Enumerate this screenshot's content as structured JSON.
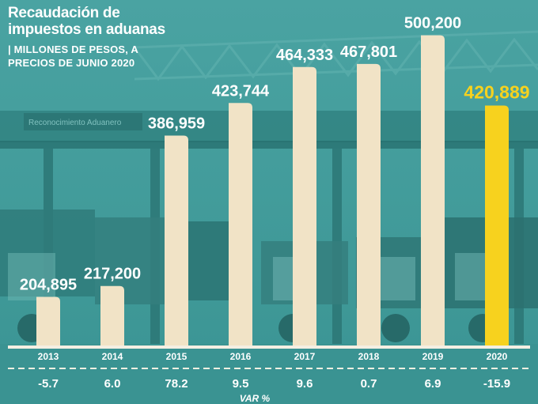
{
  "chart_data": {
    "type": "bar",
    "title": [
      "Recaudación de",
      "impuestos en aduanas"
    ],
    "subtitle": [
      "| MILLONES DE PESOS, A",
      "PRECIOS DE JUNIO 2020"
    ],
    "categories": [
      "2013",
      "2014",
      "2015",
      "2016",
      "2017",
      "2018",
      "2019",
      "2020"
    ],
    "values": [
      204895,
      217200,
      386959,
      423744,
      464333,
      467801,
      500200,
      420889
    ],
    "value_labels": [
      "204,895",
      "217,200",
      "386,959",
      "423,744",
      "464,333",
      "467,801",
      "500,200",
      "420,889"
    ],
    "var_pct": [
      "-5.7",
      "6.0",
      "78.2",
      "9.5",
      "9.6",
      "0.7",
      "6.9",
      "-15.9"
    ],
    "var_label": "VAR %",
    "highlight_index": 7,
    "ylim": [
      150000,
      515000
    ],
    "grid": false,
    "legend": "none"
  },
  "colors": {
    "background": "#3f9a99",
    "bar": "#f1e3c6",
    "highlight_bar": "#f7d21e",
    "text": "#ffffff",
    "highlight_text": "#f7d21e"
  },
  "background_scene": {
    "gantry_sign": "Reconocimiento Aduanero"
  }
}
